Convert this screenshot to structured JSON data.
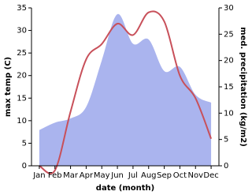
{
  "chart_data": {
    "type": "line_area",
    "x_label": "date (month)",
    "categories": [
      "Jan",
      "Feb",
      "Mar",
      "Apr",
      "May",
      "Jun",
      "Jul",
      "Aug",
      "Sep",
      "Oct",
      "Nov",
      "Dec"
    ],
    "series": [
      {
        "name": "med. precipitation (kg/m2)",
        "color": "#aab4ee",
        "axis": "y2",
        "values": [
          6.8,
          8.2,
          9,
          11.2,
          20,
          28.8,
          23.2,
          24,
          18,
          18.8,
          13.5,
          12
        ]
      },
      {
        "name": "max temp (C)",
        "color": "#c8505a",
        "values": [
          0,
          -1,
          12,
          23.6,
          27,
          31.5,
          29,
          34,
          32,
          20,
          15,
          6
        ]
      }
    ],
    "ylim": [
      0,
      35
    ],
    "yticks": [
      0,
      5,
      10,
      15,
      20,
      25,
      30,
      35
    ],
    "y2lim": [
      0,
      30
    ],
    "y2ticks": [
      0,
      5,
      10,
      15,
      20,
      25,
      30
    ]
  }
}
